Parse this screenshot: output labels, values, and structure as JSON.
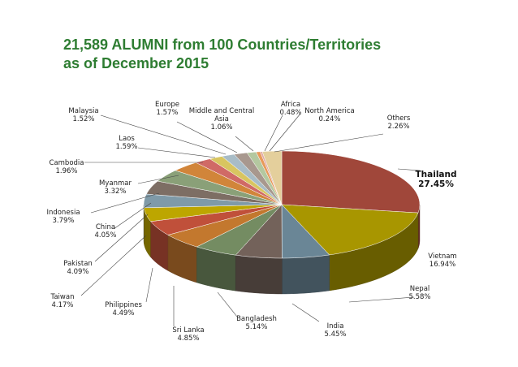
{
  "title_line1": "21,589 ALUMNI from 100 Countries/Territories",
  "title_line2": "as of December 2015",
  "chart_data": {
    "type": "pie",
    "three_d": true,
    "title": "21,589 ALUMNI from 100 Countries/Territories as of December 2015",
    "unit": "%",
    "slices": [
      {
        "label": "Thailand",
        "value": 27.45,
        "value_text": "27.45%",
        "color": "#a0473a"
      },
      {
        "label": "Vietnam",
        "value": 16.94,
        "value_text": "16.94%",
        "color": "#a89600"
      },
      {
        "label": "Nepal",
        "value": 5.58,
        "value_text": "5.58%",
        "color": "#6a8696"
      },
      {
        "label": "India",
        "value": 5.45,
        "value_text": "5.45%",
        "color": "#73625a"
      },
      {
        "label": "Bangladesh",
        "value": 5.14,
        "value_text": "5.14%",
        "color": "#748c62"
      },
      {
        "label": "Sri Lanka",
        "value": 4.85,
        "value_text": "4.85%",
        "color": "#c3782e"
      },
      {
        "label": "Philippines",
        "value": 4.49,
        "value_text": "4.49%",
        "color": "#c0503a"
      },
      {
        "label": "Taiwan",
        "value": 4.17,
        "value_text": "4.17%",
        "color": "#bda600"
      },
      {
        "label": "Pakistan",
        "value": 4.09,
        "value_text": "4.09%",
        "color": "#7f9aa8"
      },
      {
        "label": "China",
        "value": 4.05,
        "value_text": "4.05%",
        "color": "#7d6e64"
      },
      {
        "label": "Indonesia",
        "value": 3.79,
        "value_text": "3.79%",
        "color": "#8aa078"
      },
      {
        "label": "Myanmar",
        "value": 3.32,
        "value_text": "3.32%",
        "color": "#d1853a"
      },
      {
        "label": "Cambodia",
        "value": 1.96,
        "value_text": "1.96%",
        "color": "#d06a66"
      },
      {
        "label": "Laos",
        "value": 1.59,
        "value_text": "1.59%",
        "color": "#d8c560"
      },
      {
        "label": "Malaysia",
        "value": 1.52,
        "value_text": "1.52%",
        "color": "#a8bcc6"
      },
      {
        "label": "Europe",
        "value": 1.57,
        "value_text": "1.57%",
        "color": "#a8988e"
      },
      {
        "label": "Middle and Central Asia",
        "value": 1.06,
        "value_text": "1.06%",
        "color": "#b4c8a0"
      },
      {
        "label": "Africa",
        "value": 0.48,
        "value_text": "0.48%",
        "color": "#e89a5a"
      },
      {
        "label": "North America",
        "value": 0.24,
        "value_text": "0.24%",
        "color": "#e0a8a4"
      },
      {
        "label": "Others",
        "value": 2.26,
        "value_text": "2.26%",
        "color": "#e4cf9c"
      }
    ]
  }
}
